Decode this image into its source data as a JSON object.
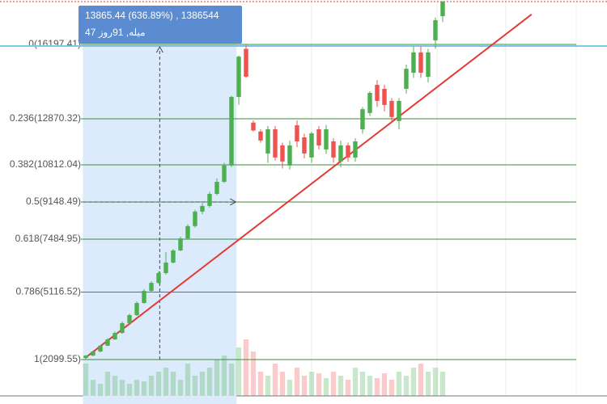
{
  "chart_data": {
    "type": "candlestick",
    "open": [
      2170,
      2280,
      2460,
      2720,
      3000,
      3290,
      3730,
      4090,
      4630,
      5170,
      5530,
      5970,
      6440,
      6980,
      7520,
      8070,
      8720,
      8970,
      9510,
      10050,
      10780,
      13850,
      16000,
      12700,
      12300,
      11320,
      12400,
      11680,
      10780,
      12580,
      12040,
      11140,
      12400,
      11500,
      11860,
      10960,
      11680,
      11140,
      12400,
      13130,
      14390,
      14210,
      13670,
      12770,
      14210,
      14930,
      15840,
      14750,
      16380,
      17460
    ],
    "high": [
      2300,
      2500,
      2750,
      3050,
      3350,
      3800,
      4150,
      4700,
      5250,
      5600,
      6050,
      6900,
      7050,
      7600,
      8150,
      8800,
      9100,
      9600,
      10200,
      10900,
      13900,
      15700,
      16200,
      12800,
      12400,
      12550,
      12550,
      11800,
      11900,
      12800,
      12200,
      12300,
      12550,
      12600,
      12000,
      11900,
      11800,
      12000,
      13400,
      14100,
      14600,
      14400,
      13800,
      13800,
      15300,
      16100,
      16100,
      16000,
      17400,
      18150
    ],
    "low": [
      2100,
      2250,
      2420,
      2700,
      2980,
      3250,
      3700,
      4050,
      4600,
      5100,
      5500,
      5900,
      6400,
      6950,
      7500,
      8000,
      8600,
      8900,
      9450,
      10000,
      10700,
      13500,
      14700,
      12300,
      11800,
      10900,
      11000,
      10650,
      10600,
      11600,
      11100,
      10900,
      11500,
      11300,
      10900,
      10700,
      10950,
      10950,
      12200,
      13000,
      13400,
      13200,
      12700,
      12400,
      14000,
      14700,
      14700,
      14500,
      16000,
      17200
    ],
    "close": [
      2280,
      2460,
      2720,
      3000,
      3290,
      3730,
      4090,
      4630,
      5170,
      5530,
      5970,
      6440,
      6980,
      7520,
      8070,
      8720,
      8970,
      9510,
      10050,
      10780,
      13850,
      15650,
      14750,
      12350,
      11900,
      12400,
      11140,
      10960,
      11680,
      11860,
      11320,
      12220,
      11680,
      12400,
      11140,
      11680,
      11140,
      11860,
      13300,
      14030,
      13670,
      13490,
      12950,
      13670,
      15110,
      15840,
      14930,
      15840,
      17280,
      18100
    ],
    "volume": [
      40,
      20,
      15,
      30,
      25,
      20,
      15,
      20,
      18,
      25,
      30,
      35,
      30,
      20,
      40,
      25,
      30,
      35,
      45,
      50,
      40,
      60,
      70,
      55,
      30,
      25,
      40,
      30,
      20,
      35,
      25,
      30,
      28,
      22,
      30,
      25,
      20,
      35,
      30,
      25,
      22,
      28,
      20,
      30,
      25,
      35,
      40,
      30,
      35,
      30
    ],
    "vlim": [
      0,
      100
    ],
    "up_color": "#4caf50",
    "down_color": "#ef5350",
    "xlim": [
      -11.78,
      71.56
    ],
    "ylim": [
      473,
      18185
    ],
    "fib_levels": [
      {
        "value": 16197.41,
        "label": "0(16197.41)"
      },
      {
        "value": 12870.32,
        "label": "0.236(12870.32)"
      },
      {
        "value": 10812.04,
        "label": "0.382(10812.04)"
      },
      {
        "value": 9148.49,
        "label": "0.5(9148.49)"
      },
      {
        "value": 7484.95,
        "label": "0.618(7484.95)"
      },
      {
        "value": 5116.52,
        "label": "0.786(5116.52)"
      },
      {
        "value": 2099.55,
        "label": "1(2099.55)"
      }
    ],
    "fib_color": "#3d8b37",
    "trend_line": {
      "x": [
        -0.1,
        61.2
      ],
      "y": [
        2170,
        17540
      ],
      "color": "#e53935"
    },
    "measure": {
      "x": [
        -0.4,
        20.7
      ],
      "y": [
        2099.55,
        16197.41
      ],
      "lines": [
        "13865.44 (636.89%) , 1386544",
        "میله, 91روز 47"
      ]
    }
  }
}
